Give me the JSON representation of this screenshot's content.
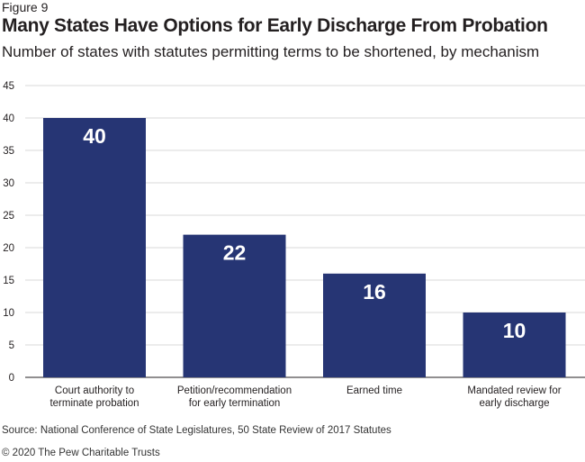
{
  "figure_label": "Figure 9",
  "title": "Many States Have Options for Early Discharge From Probation",
  "subtitle": "Number of states with statutes permitting terms to be shortened, by mechanism",
  "source": "Source: National Conference of State Legislatures, 50 State Review of 2017 Statutes",
  "copyright": "© 2020 The Pew Charitable Trusts",
  "chart_data": {
    "type": "bar",
    "categories": [
      [
        "Court authority to",
        "terminate probation"
      ],
      [
        "Petition/recommendation",
        "for early termination"
      ],
      [
        "Earned time"
      ],
      [
        "Mandated review for",
        "early discharge"
      ]
    ],
    "values": [
      40,
      22,
      16,
      10
    ],
    "data_labels": [
      "40",
      "22",
      "16",
      "10"
    ],
    "yticks": [
      "0",
      "5",
      "10",
      "15",
      "20",
      "25",
      "30",
      "35",
      "40",
      "45"
    ],
    "ylim": [
      0,
      45
    ],
    "grid": true,
    "bar_color": "#263574",
    "label_color": "#ffffff"
  }
}
